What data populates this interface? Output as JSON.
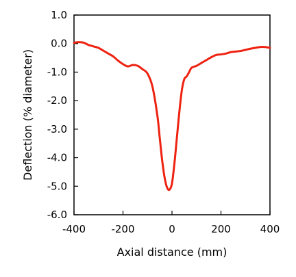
{
  "chart_data": {
    "type": "line",
    "title": "",
    "xlabel": "Axial distance (mm)",
    "ylabel": "Deflection  (% diameter)",
    "xlim": [
      -400,
      400
    ],
    "ylim": [
      -6,
      1
    ],
    "x_ticks": [
      -400,
      -200,
      0,
      200,
      400
    ],
    "x_tick_labels": [
      "-400",
      "-200",
      "0",
      "200",
      "400"
    ],
    "y_ticks": [
      1,
      0,
      -1,
      -2,
      -3,
      -4,
      -5,
      -6
    ],
    "y_tick_labels": [
      "1.0",
      "0.0",
      "-1.0",
      "-2.0",
      "-3.0",
      "-4.0",
      "-5.0",
      "-6.0"
    ],
    "grid": false,
    "legend": "none",
    "line_color": "#ee2211",
    "series": [
      {
        "x": [
          -400,
          -380,
          -360,
          -340,
          -320,
          -300,
          -280,
          -260,
          -240,
          -220,
          -200,
          -180,
          -160,
          -140,
          -120,
          -100,
          -80,
          -60,
          -50,
          -40,
          -30,
          -20,
          -10,
          0,
          10,
          20,
          30,
          40,
          50,
          60,
          70,
          80,
          100,
          120,
          140,
          160,
          180,
          200,
          220,
          240,
          260,
          280,
          300,
          320,
          340,
          360,
          380,
          400
        ],
        "y": [
          0.03,
          0.05,
          0.03,
          -0.05,
          -0.1,
          -0.15,
          -0.25,
          -0.35,
          -0.45,
          -0.6,
          -0.72,
          -0.8,
          -0.75,
          -0.78,
          -0.9,
          -1.05,
          -1.5,
          -2.5,
          -3.3,
          -4.1,
          -4.7,
          -5.05,
          -5.12,
          -4.9,
          -4.2,
          -3.3,
          -2.4,
          -1.65,
          -1.25,
          -1.15,
          -1.0,
          -0.85,
          -0.78,
          -0.68,
          -0.58,
          -0.48,
          -0.4,
          -0.38,
          -0.35,
          -0.3,
          -0.28,
          -0.26,
          -0.22,
          -0.18,
          -0.15,
          -0.12,
          -0.12,
          -0.15
        ]
      }
    ]
  }
}
